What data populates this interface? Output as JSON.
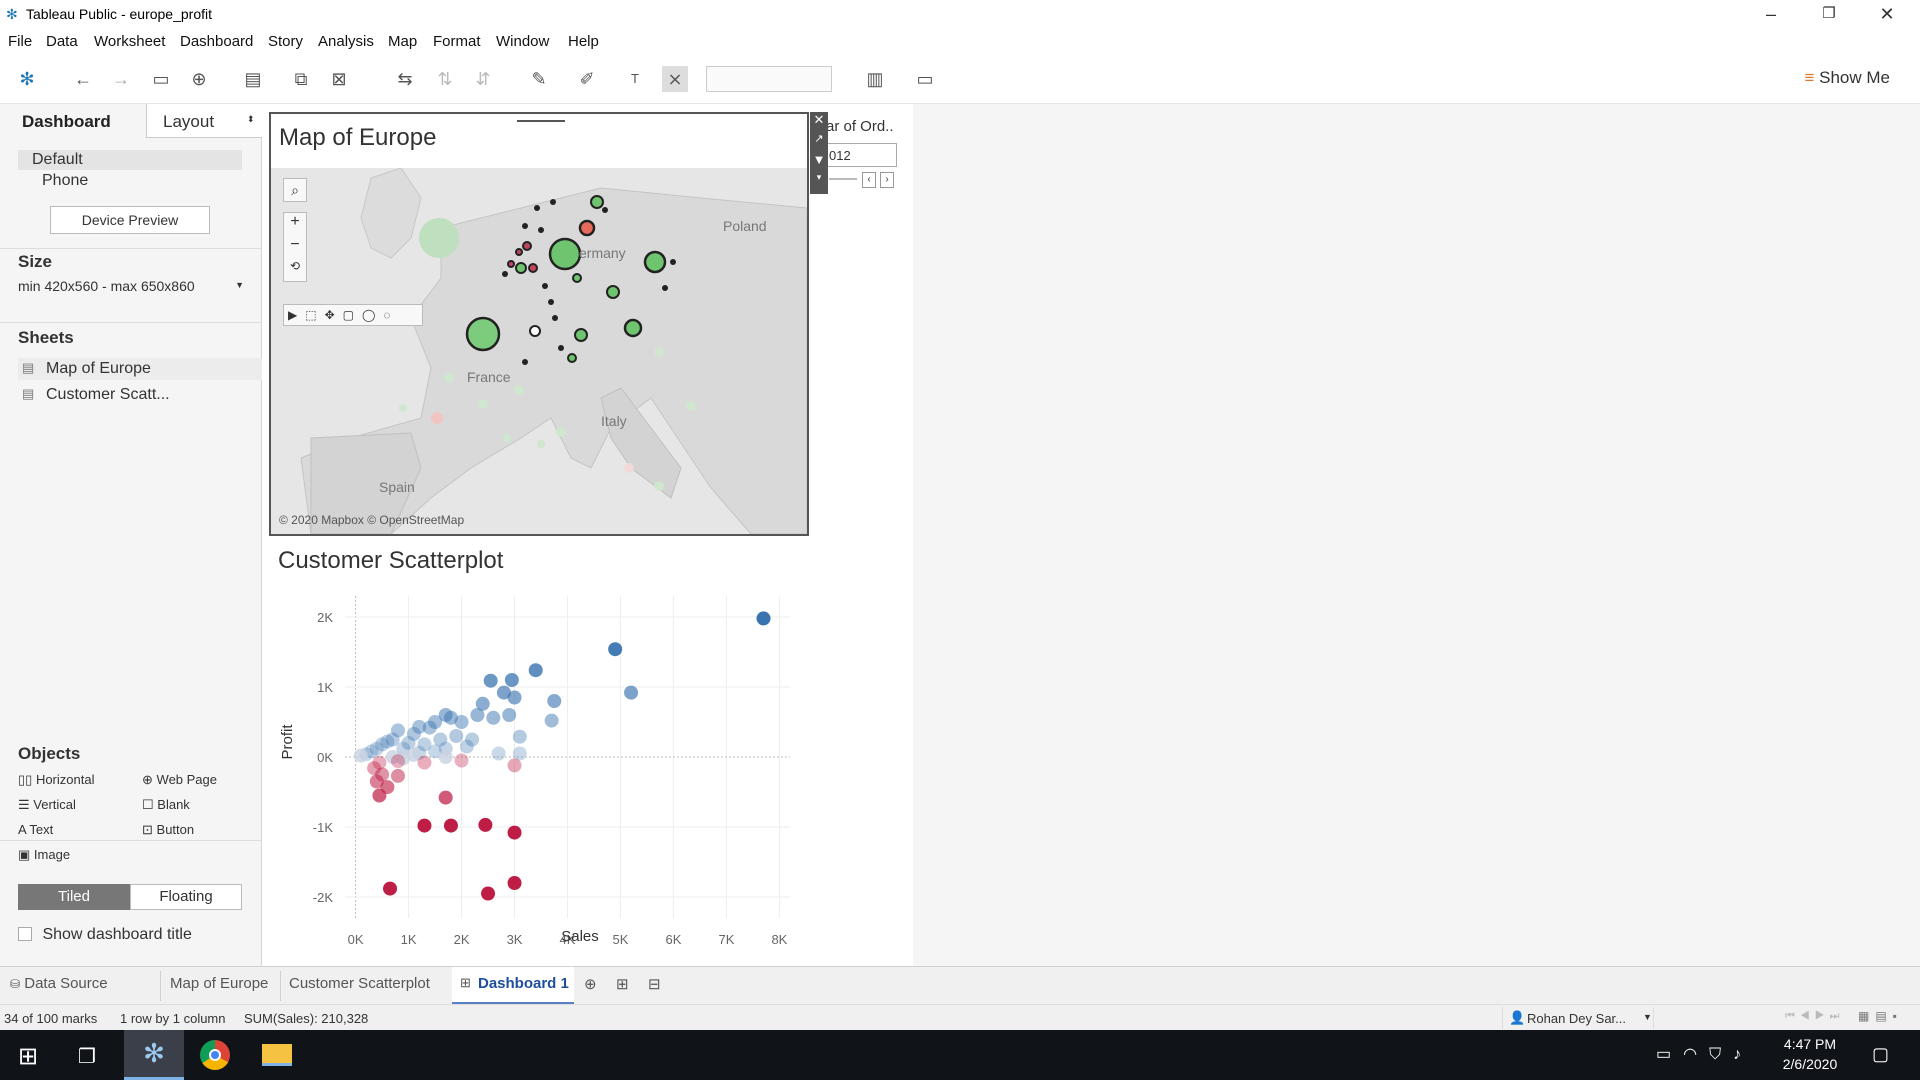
{
  "window": {
    "title": "Tableau Public - europe_profit"
  },
  "menu": [
    "File",
    "Data",
    "Worksheet",
    "Dashboard",
    "Story",
    "Analysis",
    "Map",
    "Format",
    "Window",
    "Help"
  ],
  "toolbar": {
    "show_me": "Show Me"
  },
  "left": {
    "tabs": [
      "Dashboard",
      "Layout"
    ],
    "device_items": [
      "Default",
      "Phone"
    ],
    "device_preview": "Device Preview",
    "size_label": "Size",
    "size_value": "min 420x560 - max 650x860",
    "sheets_label": "Sheets",
    "sheets": [
      "Map of Europe",
      "Customer Scatt..."
    ],
    "objects_label": "Objects",
    "objects": [
      "Horizontal",
      "Web Page",
      "Vertical",
      "Blank",
      "Text",
      "Button",
      "Image"
    ],
    "tiled": "Tiled",
    "floating": "Floating",
    "show_title": "Show dashboard title"
  },
  "filter": {
    "title": "ar of Ord..",
    "value": "012"
  },
  "map": {
    "title": "Map of Europe",
    "labels": [
      "Poland",
      "ermany",
      "France",
      "Italy",
      "Spain"
    ],
    "credit": "© 2020 Mapbox © OpenStreetMap"
  },
  "chart_data": {
    "type": "scatter",
    "title": "Customer Scatterplot",
    "xlabel": "Sales",
    "ylabel": "Profit",
    "xlim": [
      -200,
      8200
    ],
    "ylim": [
      -2300,
      2300
    ],
    "xticks": [
      "0K",
      "1K",
      "2K",
      "3K",
      "4K",
      "5K",
      "6K",
      "7K",
      "8K"
    ],
    "yticks": [
      "2K",
      "1K",
      "0K",
      "-1K",
      "-2K"
    ],
    "points": [
      [
        7700,
        1980
      ],
      [
        4900,
        1540
      ],
      [
        5200,
        920
      ],
      [
        3400,
        1240
      ],
      [
        2550,
        1090
      ],
      [
        2950,
        1100
      ],
      [
        2800,
        920
      ],
      [
        3000,
        850
      ],
      [
        3750,
        800
      ],
      [
        3700,
        520
      ],
      [
        2900,
        600
      ],
      [
        3100,
        290
      ],
      [
        2400,
        760
      ],
      [
        2600,
        560
      ],
      [
        2300,
        600
      ],
      [
        1700,
        600
      ],
      [
        1800,
        560
      ],
      [
        2000,
        500
      ],
      [
        1500,
        500
      ],
      [
        1400,
        420
      ],
      [
        1200,
        430
      ],
      [
        1100,
        330
      ],
      [
        800,
        380
      ],
      [
        700,
        250
      ],
      [
        600,
        220
      ],
      [
        500,
        180
      ],
      [
        400,
        120
      ],
      [
        300,
        80
      ],
      [
        200,
        40
      ],
      [
        100,
        20
      ],
      [
        900,
        120
      ],
      [
        1000,
        200
      ],
      [
        1300,
        180
      ],
      [
        1600,
        250
      ],
      [
        1900,
        300
      ],
      [
        2200,
        250
      ],
      [
        2100,
        150
      ],
      [
        1700,
        120
      ],
      [
        1500,
        80
      ],
      [
        1200,
        60
      ],
      [
        1100,
        30
      ],
      [
        700,
        0
      ],
      [
        900,
        -20
      ],
      [
        1700,
        0
      ],
      [
        2700,
        50
      ],
      [
        3100,
        50
      ],
      [
        3000,
        -120
      ],
      [
        2000,
        -50
      ],
      [
        1300,
        -80
      ],
      [
        800,
        -60
      ],
      [
        450,
        -80
      ],
      [
        350,
        -160
      ],
      [
        500,
        -250
      ],
      [
        800,
        -270
      ],
      [
        400,
        -350
      ],
      [
        600,
        -430
      ],
      [
        450,
        -550
      ],
      [
        1700,
        -580
      ],
      [
        1300,
        -980
      ],
      [
        1800,
        -980
      ],
      [
        2450,
        -970
      ],
      [
        3000,
        -1080
      ],
      [
        3000,
        -1800
      ],
      [
        2500,
        -1950
      ],
      [
        650,
        -1880
      ]
    ]
  },
  "bottom": {
    "data_source": "Data Source",
    "tabs": [
      "Map of Europe",
      "Customer Scatterplot",
      "Dashboard 1"
    ]
  },
  "status": {
    "marks": "34 of 100 marks",
    "rows": "1 row by 1 column",
    "sum": "SUM(Sales): 210,328",
    "user": "Rohan Dey Sar..."
  },
  "clock": {
    "time": "4:47 PM",
    "date": "2/6/2020"
  }
}
